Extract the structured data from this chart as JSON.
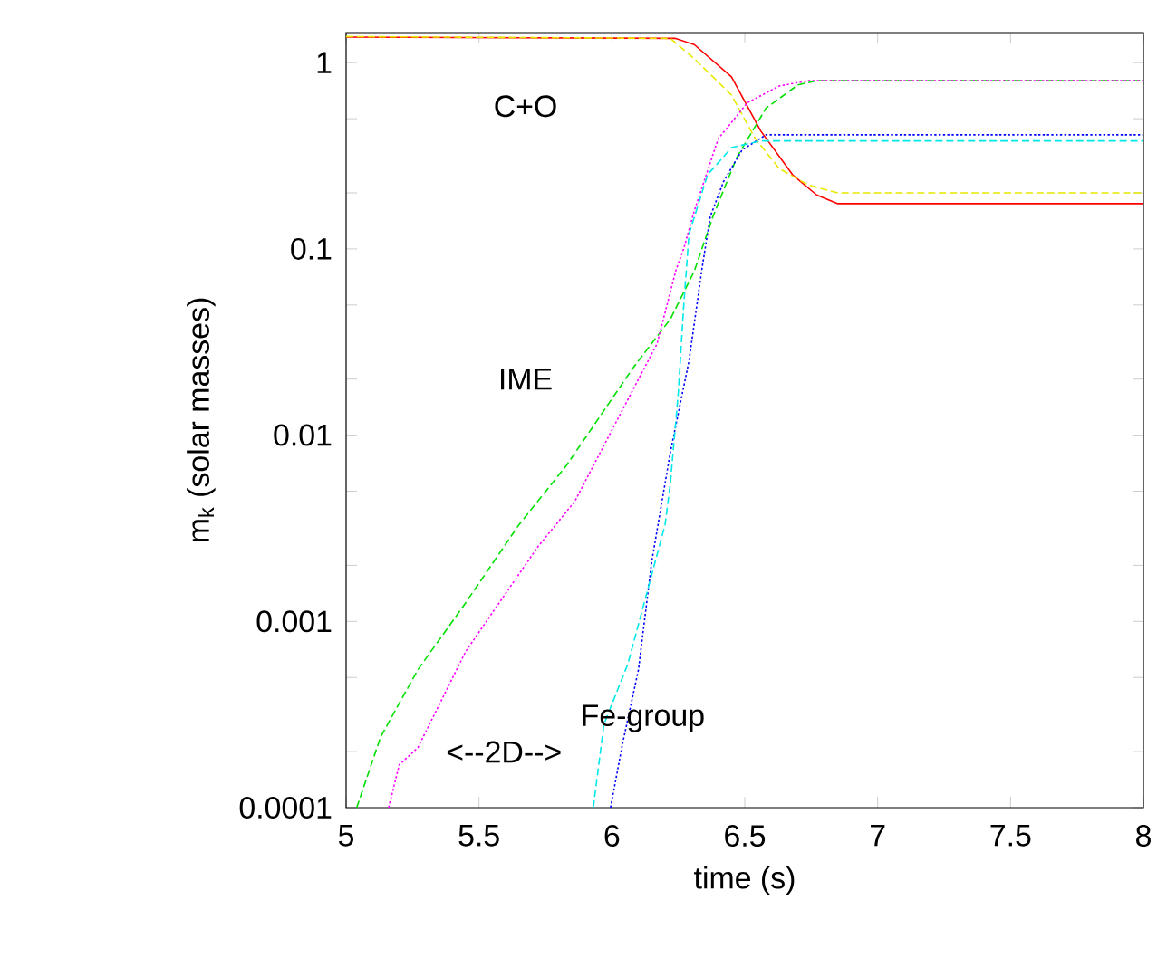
{
  "chart_data": {
    "type": "line",
    "xlabel": "time (s)",
    "ylabel": "m$_{k}$ (solar masses)",
    "log": "y",
    "xlim": [
      5,
      8
    ],
    "ylim": [
      0.0001,
      1.45
    ],
    "xticks": [
      5,
      5.5,
      6,
      6.5,
      7,
      7.5,
      8
    ],
    "yticks": [
      0.0001,
      {
        "value": 0.0002,
        "label": null
      },
      {
        "value": 0.0005,
        "label": null
      },
      0.001,
      {
        "value": 0.002,
        "label": null
      },
      {
        "value": 0.005,
        "label": null
      },
      0.01,
      {
        "value": 0.02,
        "label": null
      },
      {
        "value": 0.05,
        "label": null
      },
      0.1,
      {
        "value": 0.2,
        "label": null
      },
      {
        "value": 0.5,
        "label": null
      },
      1
    ],
    "grid": false,
    "marker": "none",
    "series": [
      {
        "color": "#ff0000",
        "line_style": "solid",
        "x": [
          5,
          6.24,
          6.31,
          6.45,
          6.56,
          6.68,
          6.77,
          6.85,
          8
        ],
        "values": [
          1.37,
          1.35,
          1.25,
          0.84,
          0.43,
          0.25,
          0.195,
          0.175,
          0.175
        ]
      },
      {
        "color": "#e8e800",
        "line_style": "dashed",
        "x": [
          5,
          6.22,
          6.31,
          6.45,
          6.54,
          6.63,
          6.74,
          6.85,
          8
        ],
        "values": [
          1.38,
          1.35,
          1.05,
          0.67,
          0.39,
          0.27,
          0.22,
          0.2,
          0.2
        ]
      },
      {
        "color": "#00e000",
        "line_style": "dashed",
        "x": [
          5.04,
          5.13,
          5.27,
          5.45,
          5.65,
          5.83,
          6.08,
          6.22,
          6.31,
          6.38,
          6.47,
          6.58,
          6.7,
          6.77,
          8
        ],
        "values": [
          0.0001,
          0.00024,
          0.00055,
          0.00126,
          0.0033,
          0.0069,
          0.023,
          0.042,
          0.076,
          0.149,
          0.31,
          0.57,
          0.76,
          0.8,
          0.8
        ]
      },
      {
        "color": "#ff00ff",
        "line_style": "dotted",
        "x": [
          5.16,
          5.2,
          5.27,
          5.45,
          5.72,
          5.86,
          6.17,
          6.24,
          6.27,
          6.31,
          6.4,
          6.51,
          6.63,
          6.74,
          8
        ],
        "values": [
          0.0001,
          0.00017,
          0.00021,
          0.00069,
          0.0025,
          0.0044,
          0.031,
          0.076,
          0.1,
          0.16,
          0.39,
          0.61,
          0.75,
          0.8,
          0.8
        ]
      },
      {
        "color": "#0000ff",
        "line_style": "dotted",
        "x": [
          5.995,
          6.04,
          6.1,
          6.15,
          6.22,
          6.29,
          6.34,
          6.37,
          6.42,
          6.49,
          6.58,
          8
        ],
        "values": [
          0.0001,
          0.00022,
          0.00055,
          0.0021,
          0.0081,
          0.025,
          0.08,
          0.149,
          0.23,
          0.34,
          0.41,
          0.41
        ]
      },
      {
        "color": "#00e8e8",
        "line_style": "dashed",
        "x": [
          5.93,
          5.97,
          6.06,
          6.2,
          6.22,
          6.25,
          6.27,
          6.29,
          6.36,
          6.45,
          6.56,
          8
        ],
        "values": [
          0.0001,
          0.00028,
          0.00059,
          0.0033,
          0.0055,
          0.017,
          0.049,
          0.12,
          0.25,
          0.35,
          0.38,
          0.38
        ]
      }
    ],
    "annotations": [
      "C+O",
      "IME",
      "Fe-group",
      "<--2D-->"
    ]
  }
}
